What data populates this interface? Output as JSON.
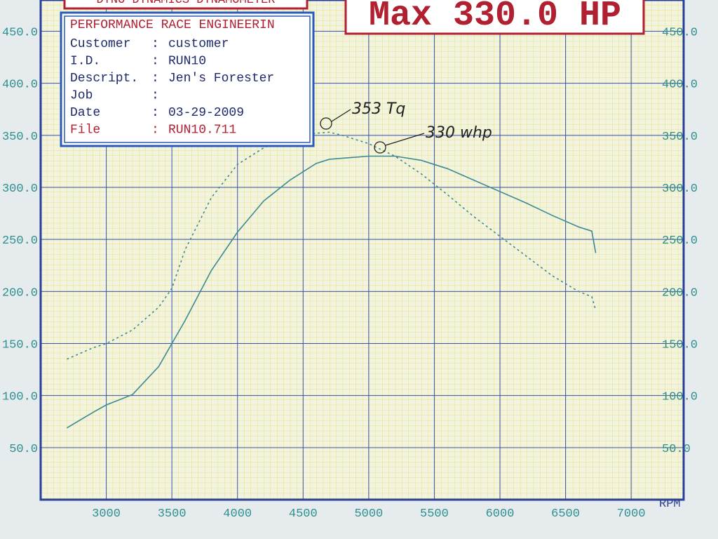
{
  "chart_data": {
    "type": "line",
    "header": "DYNO DYNAMICS DYNAMOMETER",
    "max_label": "Max 330.0 HP",
    "info_box": {
      "title": "PERFORMANCE RACE ENGINEERIN",
      "separator": ":",
      "rows": [
        {
          "label": "Customer",
          "value": "customer"
        },
        {
          "label": "I.D.",
          "value": "RUN10"
        },
        {
          "label": "Descript.",
          "value": "Jen's Forester"
        },
        {
          "label": "Job"
        },
        {
          "label": "Date",
          "value": "03-29-2009"
        },
        {
          "label": "File",
          "value": "RUN10.711"
        }
      ]
    },
    "annotations": [
      "353 Tq",
      "330 whp"
    ],
    "x_label": "RPM",
    "x": [
      2700,
      2900,
      3000,
      3200,
      3400,
      3500,
      3600,
      3800,
      4000,
      4200,
      4400,
      4600,
      4700,
      4800,
      5000,
      5200,
      5400,
      5600,
      5800,
      6000,
      6200,
      6400,
      6600,
      6700,
      6730
    ],
    "series": [
      {
        "name": "Power",
        "color": "#3a8a96",
        "style": "solid",
        "values": [
          69,
          84,
          91,
          101,
          128,
          150,
          172,
          220,
          257,
          287,
          307,
          323,
          327,
          328,
          330,
          330,
          326,
          318,
          307,
          296,
          285,
          273,
          262,
          258,
          237
        ]
      },
      {
        "name": "Torque",
        "color": "#3a8a96",
        "style": "dashed",
        "values": [
          135,
          146,
          150,
          163,
          185,
          203,
          240,
          290,
          322,
          338,
          348,
          352,
          353,
          350,
          342,
          330,
          313,
          293,
          272,
          253,
          234,
          215,
          200,
          195,
          182
        ]
      }
    ],
    "xlim": [
      2500,
      7400
    ],
    "xticks": [
      3000,
      3500,
      4000,
      4500,
      5000,
      5500,
      6000,
      6500,
      7000
    ],
    "ylim": [
      0,
      480
    ],
    "yticks": [
      {
        "value": 50,
        "label": "50.0"
      },
      {
        "value": 100,
        "label": "100.0"
      },
      {
        "value": 150,
        "label": "150.0"
      },
      {
        "value": 200,
        "label": "200.0"
      },
      {
        "value": 250,
        "label": "250.0"
      },
      {
        "value": 300,
        "label": "300.0"
      },
      {
        "value": 350,
        "label": "350.0"
      },
      {
        "value": 400,
        "label": "400.0"
      },
      {
        "value": 450,
        "label": "450.0"
      }
    ],
    "y2lim": [
      0,
      480
    ],
    "y2ticks": [
      {
        "value": 50,
        "label": "50.0"
      },
      {
        "value": 100,
        "label": "100.0"
      },
      {
        "value": 150,
        "label": "150.0"
      },
      {
        "value": 200,
        "label": "200.0"
      },
      {
        "value": 250,
        "label": "250.0"
      },
      {
        "value": 300,
        "label": "300.0"
      },
      {
        "value": 350,
        "label": "350.0"
      },
      {
        "value": 400,
        "label": "400.0"
      },
      {
        "value": 450,
        "label": "450.0"
      }
    ],
    "grid": true
  }
}
